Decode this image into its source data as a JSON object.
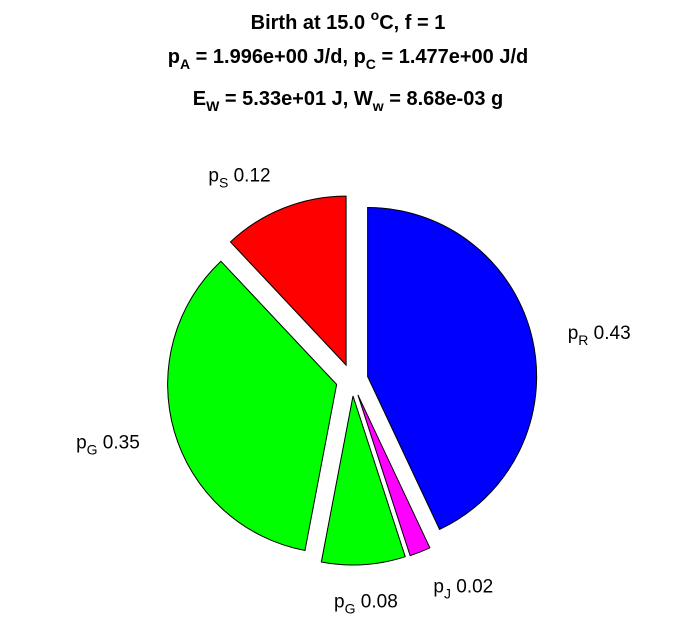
{
  "chart_data": {
    "type": "pie",
    "title": {
      "line1": {
        "pre": "Birth at 15.0 ",
        "sup": "o",
        "post": "C, f = 1"
      },
      "line2": {
        "a": "p",
        "a_sub": "A",
        "a_val": " = 1.996e+00 J/d, ",
        "b": "p",
        "b_sub": "C",
        "b_val": " = 1.477e+00 J/d"
      },
      "line3": {
        "a": "E",
        "a_sub": "W",
        "a_val": " = 5.33e+01 J, ",
        "b": "W",
        "b_sub": "w",
        "b_val": " = 8.68e-03 g"
      }
    },
    "slices": [
      {
        "name": "p",
        "sub": "R",
        "value_label": "0.43",
        "value": 0.43,
        "color": "#0000ff",
        "explode": 1
      },
      {
        "name": "p",
        "sub": "J",
        "value_label": "0.02",
        "value": 0.02,
        "color": "#ff00ff",
        "explode": 1
      },
      {
        "name": "p",
        "sub": "G",
        "value_label": "0.08",
        "value": 0.08,
        "color": "#00ff00",
        "explode": 1
      },
      {
        "name": "p",
        "sub": "G",
        "value_label": "0.35",
        "value": 0.35,
        "color": "#00ff00",
        "explode": 1
      },
      {
        "name": "p",
        "sub": "S",
        "value_label": "0.12",
        "value": 0.12,
        "color": "#ff0000",
        "explode": 1
      }
    ],
    "direction": "clockwise",
    "start_angle_deg": 90,
    "legend": "none",
    "grid": false
  }
}
